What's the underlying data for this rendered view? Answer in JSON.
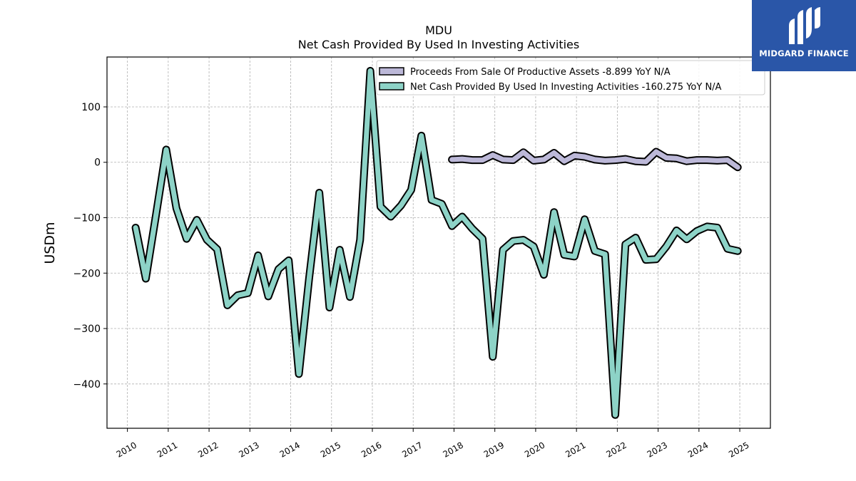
{
  "chart_data": {
    "type": "line",
    "title": "MDU",
    "subtitle": "Net Cash Provided By Used In Investing Activities",
    "ylabel": "USDm",
    "xlabel": "",
    "ylim": [
      -480,
      190
    ],
    "xlim": [
      2009.5,
      2025.75
    ],
    "yticks": [
      100,
      0,
      -100,
      -200,
      -300,
      -400
    ],
    "ytick_labels": [
      "100",
      "0",
      "−100",
      "−200",
      "−300",
      "−400"
    ],
    "xticks": [
      2010,
      2011,
      2012,
      2013,
      2014,
      2015,
      2016,
      2017,
      2018,
      2019,
      2020,
      2021,
      2022,
      2023,
      2024,
      2025
    ],
    "xtick_labels": [
      "2010",
      "2011",
      "2012",
      "2013",
      "2014",
      "2015",
      "2016",
      "2017",
      "2018",
      "2019",
      "2020",
      "2021",
      "2022",
      "2023",
      "2024",
      "2025"
    ],
    "grid": true,
    "legend_position": "top-right",
    "series": [
      {
        "name": "Proceeds From Sale Of Productive Assets  -8.899 YoY N/A",
        "color": "#bcb8d8",
        "x": [
          2017.95,
          2018.2,
          2018.45,
          2018.7,
          2018.95,
          2019.2,
          2019.45,
          2019.7,
          2019.95,
          2020.2,
          2020.45,
          2020.7,
          2020.95,
          2021.2,
          2021.45,
          2021.7,
          2021.95,
          2022.2,
          2022.45,
          2022.7,
          2022.95,
          2023.2,
          2023.45,
          2023.7,
          2023.95,
          2024.2,
          2024.45,
          2024.7,
          2024.95
        ],
        "values": [
          5,
          6,
          4,
          4,
          13,
          5,
          4,
          18,
          3,
          5,
          17,
          2,
          12,
          10,
          5,
          3,
          4,
          6,
          2,
          1,
          19,
          8,
          7,
          2,
          4,
          4,
          3,
          4,
          -9
        ]
      },
      {
        "name": "Net Cash Provided By Used In Investing Activities  -160.275 YoY N/A",
        "color": "#8dd3c7",
        "x": [
          2010.2,
          2010.45,
          2010.7,
          2010.95,
          2011.2,
          2011.45,
          2011.7,
          2011.95,
          2012.2,
          2012.45,
          2012.7,
          2012.95,
          2013.2,
          2013.45,
          2013.7,
          2013.95,
          2014.2,
          2014.45,
          2014.7,
          2014.95,
          2015.2,
          2015.45,
          2015.7,
          2015.95,
          2016.2,
          2016.45,
          2016.7,
          2016.95,
          2017.2,
          2017.45,
          2017.7,
          2017.95,
          2018.2,
          2018.45,
          2018.7,
          2018.95,
          2019.2,
          2019.45,
          2019.7,
          2019.95,
          2020.2,
          2020.45,
          2020.7,
          2020.95,
          2021.2,
          2021.45,
          2021.7,
          2021.95,
          2022.2,
          2022.45,
          2022.7,
          2022.95,
          2023.2,
          2023.45,
          2023.7,
          2023.95,
          2024.2,
          2024.45,
          2024.7,
          2024.95
        ],
        "values": [
          -118,
          -210,
          -95,
          23,
          -83,
          -138,
          -104,
          -140,
          -157,
          -258,
          -240,
          -236,
          -168,
          -242,
          -193,
          -177,
          -382,
          -210,
          -55,
          -262,
          -158,
          -243,
          -140,
          165,
          -80,
          -98,
          -78,
          -50,
          48,
          -68,
          -75,
          -115,
          -98,
          -120,
          -138,
          -351,
          -158,
          -142,
          -140,
          -152,
          -203,
          -90,
          -167,
          -170,
          -103,
          -160,
          -166,
          -456,
          -148,
          -136,
          -176,
          -175,
          -152,
          -123,
          -139,
          -124,
          -116,
          -118,
          -156,
          -160
        ]
      }
    ]
  },
  "logo": {
    "text": "MIDGARD FINANCE",
    "background": "#2a56a8"
  }
}
